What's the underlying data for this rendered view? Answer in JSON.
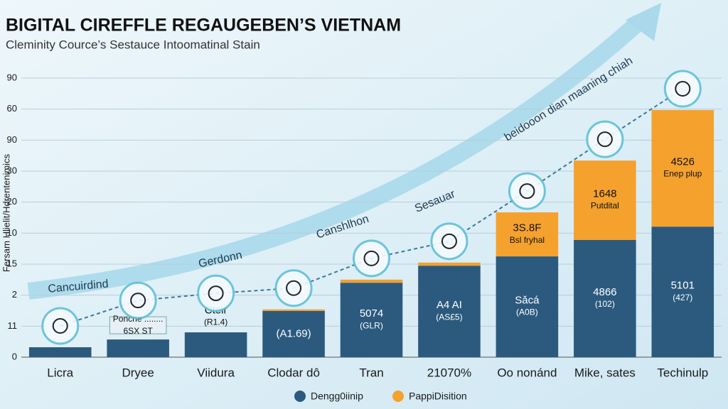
{
  "chart_data": {
    "type": "stacked_bar",
    "title": "BIGITAL CIREFFLE REGAUGEBEN’S VIETNAM",
    "subtitle": "Cleminity Cource’s Sestauce Intoomatinal Stain",
    "y_axis_label": "Fersam Hlielit/Hdrentenimics",
    "categories": [
      "Licra",
      "Dryee",
      "Viidura",
      "Clodar dô",
      "Tran",
      "21070%",
      "Oo nonánd",
      "Mike, sates",
      "Techinulp"
    ],
    "ylim": [
      0,
      9.3
    ],
    "yticks": [
      0,
      {
        "value": 1,
        "label": "11"
      },
      {
        "value": 2,
        "label": "2"
      },
      {
        "value": 3,
        "label": "15"
      },
      {
        "value": 4,
        "label": "10"
      },
      {
        "value": 5,
        "label": "20"
      },
      {
        "value": 6,
        "label": "30"
      },
      {
        "value": 7,
        "label": "90"
      },
      {
        "value": 8,
        "label": "60"
      },
      {
        "value": 9,
        "label": "90"
      }
    ],
    "grid": true,
    "series": [
      {
        "name": "Dengg0iinip",
        "color": "#2b5a7e",
        "values": [
          0.32,
          0.57,
          0.8,
          1.49,
          2.4,
          2.95,
          3.25,
          3.78,
          4.21
        ],
        "bar_labels": [
          null,
          [
            "Poncne ........",
            "6SX ST"
          ],
          [
            "Cteir",
            "(R1.4)"
          ],
          [
            "(A1.69)"
          ],
          [
            "5074",
            "(GLR)"
          ],
          [
            "A4 AI",
            "(AS£5)"
          ],
          [
            "Sǎcá",
            "(A0B)"
          ],
          [
            "4866",
            "(102)"
          ],
          [
            "5101",
            "(427)"
          ]
        ]
      },
      {
        "name": "PappiDisition",
        "color": "#f4a12e",
        "values": [
          0,
          0,
          0,
          0.05,
          0.1,
          0.1,
          1.42,
          2.56,
          3.76
        ],
        "bar_labels": [
          null,
          null,
          null,
          null,
          null,
          null,
          [
            "3S.8F",
            "Bsl fryhal"
          ],
          [
            "1648",
            "Putdital"
          ],
          [
            "4526",
            "Enep plup"
          ]
        ]
      }
    ],
    "arrow_labels": [
      "Cancuirdind",
      "Gerdonn",
      "Canshlhon",
      "Sesauar",
      "beidooon dian maaning chiah"
    ]
  }
}
